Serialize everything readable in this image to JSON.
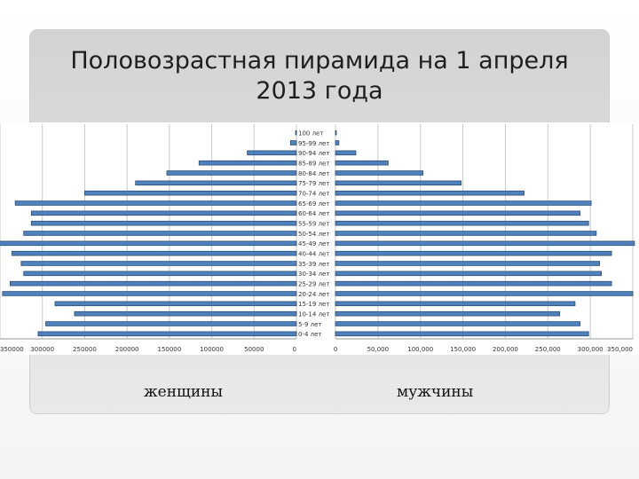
{
  "slide": {
    "title_line1": "Половозрастная пирамида на 1 апреля",
    "title_line2": "2013 года"
  },
  "chart_data": {
    "type": "bar",
    "orientation": "horizontal-population-pyramid",
    "categories": [
      "0-4 лет",
      "5-9 лет",
      "10-14 лет",
      "15-19 лет",
      "20-24 лет",
      "25-29 лет",
      "30-34 лет",
      "35-39 лет",
      "40-44 лет",
      "45-49 лет",
      "50-54 лет",
      "55-59 лет",
      "60-64 лет",
      "65-69 лет",
      "70-74 лет",
      "75-79 лет",
      "80-84 лет",
      "85-89 лет",
      "90-94 лет",
      "95-99 лет",
      "100 лет"
    ],
    "series": [
      {
        "name": "женщины",
        "side": "left",
        "values": [
          305000,
          296000,
          262000,
          285000,
          347000,
          338000,
          322000,
          325000,
          336000,
          355000,
          322000,
          313000,
          313000,
          332000,
          250000,
          190000,
          153000,
          115000,
          58000,
          7000,
          1000
        ]
      },
      {
        "name": "мужчины",
        "side": "right",
        "values": [
          298000,
          288000,
          264000,
          282000,
          350000,
          325000,
          313000,
          311000,
          325000,
          352000,
          307000,
          298000,
          288000,
          301000,
          222000,
          148000,
          103000,
          62000,
          24000,
          4000,
          500
        ]
      }
    ],
    "left_axis": {
      "ticks": [
        0,
        50000,
        100000,
        150000,
        200000,
        250000,
        300000,
        350000
      ],
      "tick_labels": [
        "0",
        "50000",
        "100000",
        "150000",
        "200000",
        "250000",
        "300000",
        "350000"
      ],
      "reversed": true
    },
    "right_axis": {
      "ticks": [
        0,
        50000,
        100000,
        150000,
        200000,
        250000,
        300000,
        350000
      ],
      "tick_labels": [
        "0",
        "50,000",
        "100,000",
        "150,000",
        "200,000",
        "250,000",
        "300,000",
        "350,000"
      ]
    },
    "xlabel_left": "женщины",
    "xlabel_right": "мужчины",
    "grid": true,
    "bar_color": "#4f81bd",
    "bar_edge_color": "#2c4d75",
    "grid_color": "#c8c8c8"
  }
}
